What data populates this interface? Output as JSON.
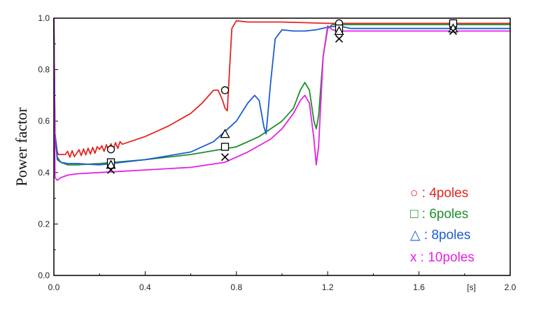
{
  "chart_data": {
    "type": "line",
    "title": "",
    "xlabel": "",
    "x_unit_label": "[s]",
    "ylabel": "Power factor",
    "xlim": [
      0,
      2.0
    ],
    "ylim": [
      0,
      1.0
    ],
    "x_ticks": [
      "0.0",
      "0.4",
      "0.8",
      "1.2",
      "1.6",
      "[s]",
      "2.0"
    ],
    "y_ticks": [
      "0.0",
      "0.2",
      "0.4",
      "0.6",
      "0.8",
      "1.0"
    ],
    "legend_position": "bottom-right",
    "series": [
      {
        "name": "4poles",
        "legend_label": "○ : 4poles",
        "marker": "circle",
        "color": "#e8231f",
        "x": [
          0.0,
          0.005,
          0.015,
          0.02,
          0.05,
          0.1,
          0.2,
          0.3,
          0.4,
          0.5,
          0.6,
          0.65,
          0.7,
          0.72,
          0.74,
          0.75,
          0.76,
          0.77,
          0.78,
          0.8,
          0.85,
          1.0,
          1.2,
          1.5,
          2.0
        ],
        "y": [
          1.0,
          0.55,
          0.48,
          0.47,
          0.47,
          0.475,
          0.49,
          0.51,
          0.54,
          0.58,
          0.63,
          0.67,
          0.72,
          0.72,
          0.68,
          0.65,
          0.64,
          0.8,
          0.96,
          0.99,
          0.985,
          0.985,
          0.98,
          0.98,
          0.98
        ],
        "oscillation_band": [
          0.05,
          0.36
        ],
        "markers_x": [
          0.25,
          0.75,
          1.25,
          1.75
        ],
        "markers_y": [
          0.49,
          0.72,
          0.98,
          0.98
        ]
      },
      {
        "name": "6poles",
        "legend_label": "□ : 6poles",
        "marker": "square",
        "color": "#1c8f2e",
        "x": [
          0.0,
          0.005,
          0.015,
          0.03,
          0.06,
          0.1,
          0.2,
          0.4,
          0.6,
          0.8,
          0.9,
          1.0,
          1.05,
          1.08,
          1.1,
          1.12,
          1.14,
          1.15,
          1.16,
          1.18,
          1.2,
          1.22,
          1.25,
          1.3,
          1.5,
          2.0
        ],
        "y": [
          1.0,
          0.55,
          0.46,
          0.44,
          0.43,
          0.43,
          0.435,
          0.45,
          0.47,
          0.5,
          0.54,
          0.6,
          0.65,
          0.72,
          0.75,
          0.72,
          0.6,
          0.57,
          0.62,
          0.85,
          0.96,
          0.975,
          0.975,
          0.975,
          0.975,
          0.975
        ],
        "markers_x": [
          0.25,
          0.75,
          1.25,
          1.75
        ],
        "markers_y": [
          0.44,
          0.5,
          0.96,
          0.98
        ]
      },
      {
        "name": "8poles",
        "legend_label": "△ : 8poles",
        "marker": "triangle",
        "color": "#1c5cd6",
        "x": [
          0.0,
          0.005,
          0.015,
          0.03,
          0.06,
          0.1,
          0.2,
          0.4,
          0.6,
          0.7,
          0.75,
          0.8,
          0.85,
          0.88,
          0.9,
          0.92,
          0.93,
          0.95,
          0.97,
          1.0,
          1.05,
          1.1,
          1.15,
          1.2,
          1.25,
          1.3,
          2.0
        ],
        "y": [
          1.0,
          0.55,
          0.45,
          0.44,
          0.435,
          0.435,
          0.43,
          0.45,
          0.48,
          0.52,
          0.56,
          0.6,
          0.67,
          0.7,
          0.68,
          0.58,
          0.55,
          0.75,
          0.92,
          0.955,
          0.95,
          0.95,
          0.955,
          0.965,
          0.97,
          0.96,
          0.96
        ],
        "markers_x": [
          0.25,
          0.75,
          1.25,
          1.75
        ],
        "markers_y": [
          0.43,
          0.55,
          0.95,
          0.96
        ]
      },
      {
        "name": "10poles",
        "legend_label": "x : 10poles",
        "marker": "x",
        "color": "#e61fe6",
        "x": [
          0.0,
          0.005,
          0.015,
          0.03,
          0.06,
          0.1,
          0.2,
          0.4,
          0.6,
          0.75,
          0.85,
          0.95,
          1.0,
          1.05,
          1.08,
          1.1,
          1.12,
          1.14,
          1.15,
          1.16,
          1.18,
          1.2,
          1.22,
          1.25,
          1.3,
          2.0
        ],
        "y": [
          1.0,
          0.38,
          0.37,
          0.38,
          0.39,
          0.395,
          0.4,
          0.41,
          0.42,
          0.44,
          0.48,
          0.53,
          0.57,
          0.63,
          0.68,
          0.7,
          0.67,
          0.53,
          0.43,
          0.5,
          0.85,
          0.97,
          0.955,
          0.95,
          0.95,
          0.95
        ],
        "markers_x": [
          0.25,
          0.75,
          1.25,
          1.75
        ],
        "markers_y": [
          0.41,
          0.46,
          0.92,
          0.95
        ]
      }
    ]
  }
}
